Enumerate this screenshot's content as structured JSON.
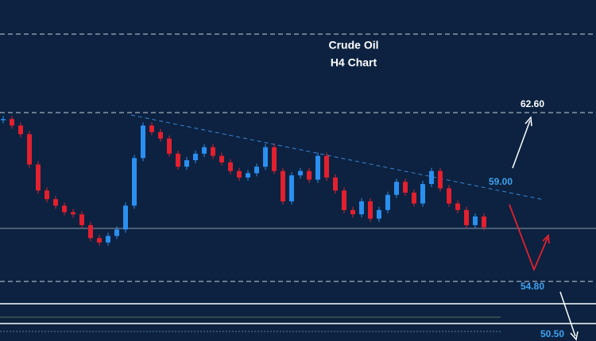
{
  "chart_data": {
    "type": "candlestick",
    "title": "Crude Oil",
    "subtitle": "H4 Chart",
    "ylim": [
      53.88,
      67.8
    ],
    "up_color": "#2b8ff0",
    "down_color": "#e3202e",
    "closes": [
      62.3,
      62.0,
      61.6,
      60.2,
      59.0,
      58.6,
      58.3,
      58.0,
      57.9,
      57.4,
      56.8,
      56.6,
      56.9,
      57.2,
      58.3,
      60.5,
      62.0,
      61.7,
      61.4,
      60.7,
      60.1,
      60.4,
      60.7,
      61.0,
      60.6,
      60.3,
      59.9,
      59.6,
      59.8,
      60.1,
      61.0,
      59.9,
      58.5,
      59.7,
      59.9,
      59.5,
      60.6,
      59.6,
      59.0,
      58.1,
      57.9,
      58.5,
      57.7,
      58.1,
      58.8,
      59.4,
      58.9,
      58.4,
      59.3,
      59.9,
      59.1,
      58.4,
      58.1,
      57.4,
      57.8,
      57.3
    ],
    "levels": [
      {
        "value": 62.6,
        "label": "62.60",
        "color": "#ffffff",
        "line": true
      },
      {
        "value": 59.0,
        "label": "59.00",
        "color": "#3fa2f0",
        "line": false
      },
      {
        "value": 54.8,
        "label": "54.80",
        "color": "#3fa2f0",
        "line": true
      },
      {
        "value": 50.5,
        "label": "50.50",
        "color": "#3fa2f0",
        "line": false
      }
    ]
  }
}
